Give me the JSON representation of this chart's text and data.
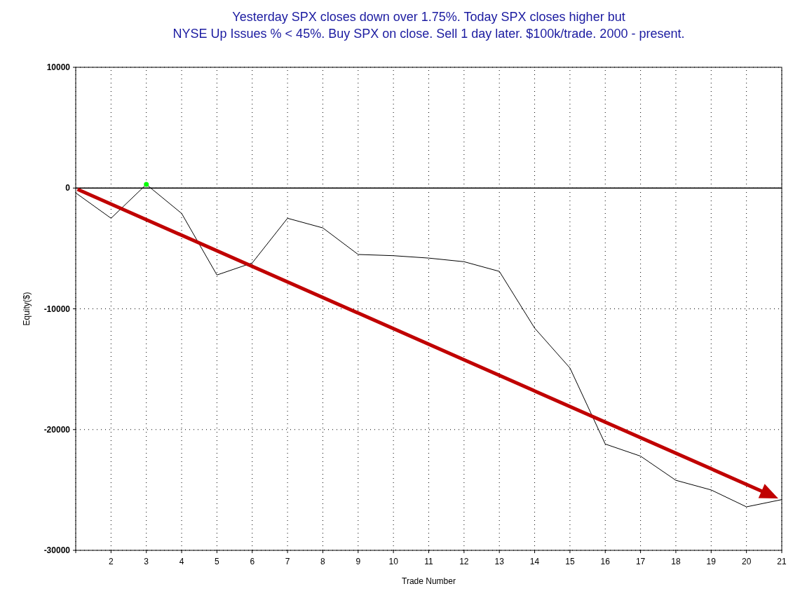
{
  "chart_data": {
    "type": "line",
    "title": "Yesterday SPX closes down over 1.75%. Today SPX closes higher but\nNYSE Up Issues % < 45%. Buy SPX on close. Sell 1 day later. $100k/trade. 2000 - present.",
    "xlabel": "Trade Number",
    "ylabel": "Equity($)",
    "x": [
      1,
      2,
      3,
      4,
      5,
      6,
      7,
      8,
      9,
      10,
      11,
      12,
      13,
      14,
      15,
      16,
      17,
      18,
      19,
      20,
      21
    ],
    "series": [
      {
        "color": "#000000",
        "values": [
          -400,
          -2500,
          300,
          -2100,
          -7200,
          -6200,
          -2500,
          -3300,
          -5500,
          -5600,
          -5800,
          -6100,
          -6900,
          -11600,
          -14900,
          -21200,
          -22200,
          -24200,
          -25000,
          -26400,
          -25800
        ]
      },
      {
        "type": "scatter",
        "color": "#00ff00",
        "values": [
          null,
          null,
          300,
          null,
          null,
          null,
          null,
          null,
          null,
          null,
          null,
          null,
          null,
          null,
          null,
          null,
          null,
          null,
          null,
          null,
          null
        ]
      }
    ],
    "xlim": [
      1,
      21
    ],
    "xticks": [
      {
        "value": 1,
        "label": null
      },
      2,
      3,
      4,
      5,
      6,
      7,
      8,
      9,
      10,
      11,
      12,
      13,
      14,
      15,
      16,
      17,
      18,
      19,
      20,
      21
    ],
    "ylim": [
      -30000,
      10000
    ],
    "yticks": [
      -30000,
      -20000,
      -10000,
      0,
      10000
    ],
    "grid": true,
    "ref_lines": [
      {
        "axis": "y",
        "value": 0,
        "color": "#000000",
        "line_style": "solid"
      }
    ]
  }
}
